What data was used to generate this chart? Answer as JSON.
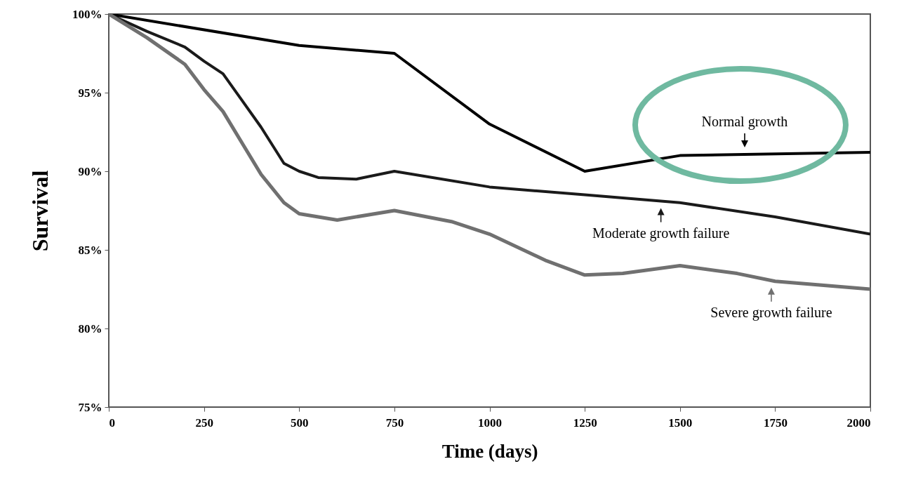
{
  "chart_data": {
    "type": "line",
    "xlabel": "Time (days)",
    "ylabel": "Survival",
    "xlim": [
      0,
      2000
    ],
    "xticks": [
      0,
      250,
      500,
      750,
      1000,
      1250,
      1500,
      1750,
      2000
    ],
    "ylim": [
      75,
      100
    ],
    "yticks": [
      {
        "value": 75,
        "label": "75%"
      },
      {
        "value": 80,
        "label": "80%"
      },
      {
        "value": 85,
        "label": "85%"
      },
      {
        "value": 90,
        "label": "90%"
      },
      {
        "value": 95,
        "label": "95%"
      },
      {
        "value": 100,
        "label": "100%"
      }
    ],
    "grid": false,
    "legend": "bottom right",
    "line_style": "solid",
    "marker": "none",
    "series": [
      {
        "name": "Normal growth",
        "color": "#000000",
        "x": [
          0,
          500,
          750,
          1000,
          1250,
          1500,
          2000
        ],
        "values": [
          100,
          98.0,
          97.5,
          93.0,
          90.0,
          91.0,
          91.2
        ]
      },
      {
        "name": "Moderate growth failure",
        "color": "#1a1a1a",
        "x": [
          0,
          100,
          200,
          250,
          300,
          350,
          400,
          460,
          500,
          550,
          650,
          750,
          1000,
          1250,
          1500,
          1750,
          2000
        ],
        "values": [
          100,
          98.9,
          97.9,
          97.0,
          96.2,
          94.5,
          92.8,
          90.5,
          90.0,
          89.6,
          89.5,
          90.0,
          89.0,
          88.5,
          88.0,
          87.1,
          86.0
        ]
      },
      {
        "name": "Severe growth failure",
        "color": "#707070",
        "x": [
          0,
          100,
          200,
          250,
          300,
          350,
          400,
          460,
          500,
          600,
          750,
          900,
          1000,
          1150,
          1250,
          1350,
          1500,
          1650,
          1750,
          2000
        ],
        "values": [
          100,
          98.5,
          96.8,
          95.2,
          93.8,
          91.8,
          89.8,
          88.0,
          87.3,
          86.9,
          87.5,
          86.8,
          86.0,
          84.3,
          83.4,
          83.5,
          84.0,
          83.5,
          83.0,
          82.5
        ]
      }
    ]
  }
}
